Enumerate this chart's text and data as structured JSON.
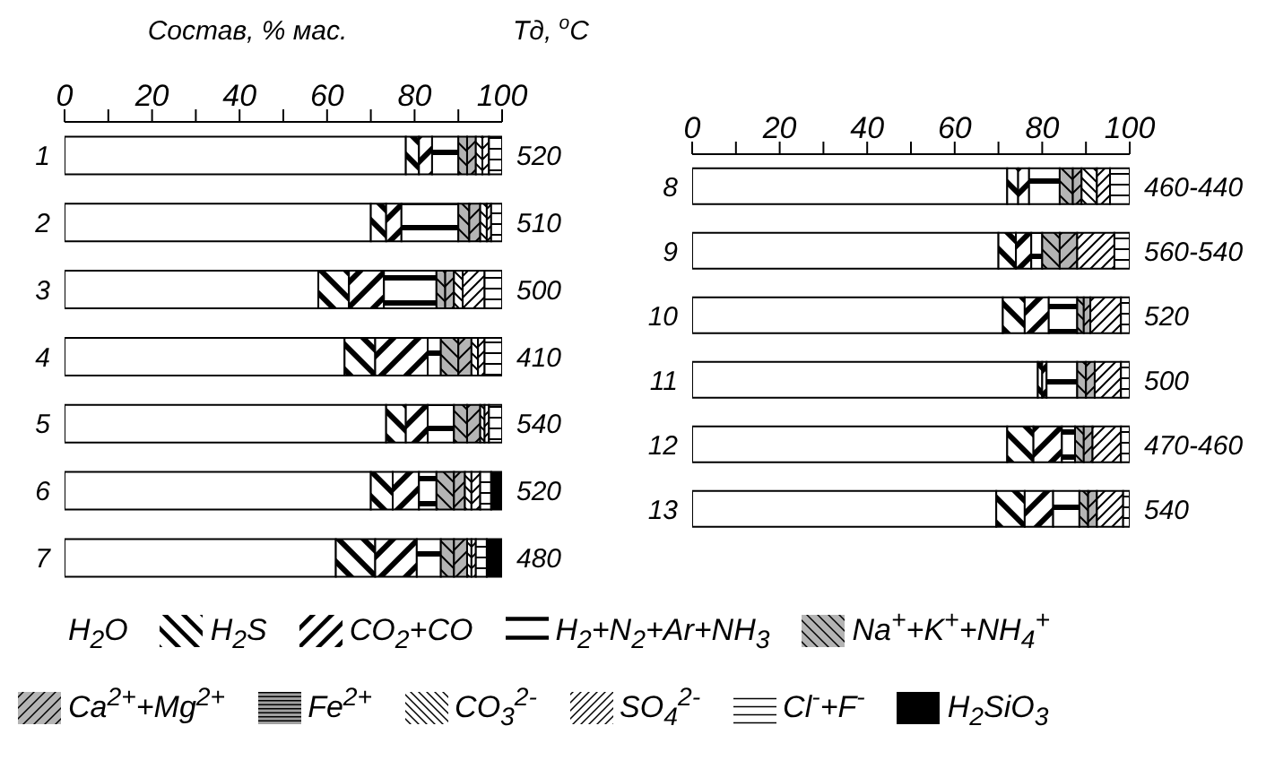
{
  "chart_data": [
    {
      "type": "bar",
      "orientation": "horizontal",
      "stacked": true,
      "xlabel": "Состав, % мас.",
      "y2label": "Тд, $^{o}$C",
      "legend": "bottom",
      "grid": false,
      "categories": [
        "1",
        "2",
        "3",
        "4",
        "5",
        "6",
        "7"
      ],
      "xlim": [
        0,
        100
      ],
      "xticks": [
        0,
        {
          "value": 10,
          "label": null
        },
        20,
        {
          "value": 30,
          "label": null
        },
        40,
        {
          "value": 50,
          "label": null
        },
        60,
        {
          "value": 70,
          "label": null
        },
        80,
        {
          "value": 90,
          "label": null
        },
        100
      ],
      "annotations": [
        "520",
        "510",
        "500",
        "410",
        "540",
        "520",
        "480"
      ],
      "series": [
        {
          "name": "H$_{2}$O",
          "color": "#ffffff",
          "values": [
            78,
            70,
            58,
            64,
            73.5,
            70,
            62
          ]
        },
        {
          "name": "H$_{2}$S",
          "color": "#000000",
          "values": [
            3,
            3.5,
            7,
            7,
            4.5,
            5,
            9
          ]
        },
        {
          "name": "CO$_{2}$+CO",
          "color": "#000000",
          "values": [
            3,
            3.5,
            8,
            12,
            5,
            6,
            9.5
          ]
        },
        {
          "name": "H$_{2}$+N$_{2}$+Ar+NH$_{3}$",
          "color": "#000000",
          "values": [
            6,
            13,
            12,
            3,
            6,
            4,
            5.5
          ]
        },
        {
          "name": "Na$^{+}$+K$^{+}$+NH$_{4}$$^{+}$",
          "color": "#000000",
          "values": [
            2,
            2.5,
            2,
            4,
            3,
            4,
            3
          ]
        },
        {
          "name": "Ca$^{2+}$+Mg$^{2+}$",
          "color": "#000000",
          "values": [
            2,
            2.5,
            2,
            3,
            3,
            2.5,
            3
          ]
        },
        {
          "name": "Fe$^{2+}$",
          "color": "#000000",
          "values": [
            0,
            0,
            0,
            0,
            0,
            0,
            0
          ]
        },
        {
          "name": "CO$_{3}$$^{2-}$",
          "color": "#000000",
          "values": [
            1.5,
            1.5,
            2,
            1.5,
            1,
            1.5,
            1
          ]
        },
        {
          "name": "SO$_{4}$$^{2-}$",
          "color": "#000000",
          "values": [
            1.5,
            1,
            5,
            1.5,
            1,
            2,
            1
          ]
        },
        {
          "name": "Cl$^{-}$+F$^{-}$",
          "color": "#000000",
          "values": [
            3,
            2.5,
            4,
            4,
            3,
            2.5,
            2.5
          ]
        },
        {
          "name": "H$_{2}$SiO$_{3}$",
          "color": "#000000",
          "values": [
            0,
            0,
            0,
            0,
            0,
            2.5,
            3.5
          ]
        }
      ]
    },
    {
      "type": "bar",
      "orientation": "horizontal",
      "stacked": true,
      "grid": false,
      "categories": [
        "8",
        "9",
        "10",
        "11",
        "12",
        "13"
      ],
      "xlim": [
        0,
        100
      ],
      "xticks": [
        0,
        {
          "value": 10,
          "label": null
        },
        20,
        {
          "value": 30,
          "label": null
        },
        40,
        {
          "value": 50,
          "label": null
        },
        60,
        {
          "value": 70,
          "label": null
        },
        80,
        {
          "value": 90,
          "label": null
        },
        100
      ],
      "annotations": [
        "460-440",
        "560-540",
        "520",
        "500",
        "470-460",
        "540"
      ],
      "series": [
        {
          "color": "#ffffff",
          "values": [
            72,
            70,
            71,
            79,
            72,
            69.5
          ]
        },
        {
          "color": "#000000",
          "values": [
            2.5,
            4,
            5,
            1,
            6,
            6.5
          ]
        },
        {
          "color": "#000000",
          "values": [
            2.5,
            3.5,
            5.5,
            1,
            6.5,
            6.5
          ]
        },
        {
          "color": "#000000",
          "values": [
            7,
            2.5,
            6.5,
            7,
            3,
            6
          ]
        },
        {
          "color": "#000000",
          "values": [
            3,
            4,
            1.5,
            2,
            2,
            2
          ]
        },
        {
          "color": "#000000",
          "values": [
            2,
            4,
            1.5,
            2,
            2,
            2
          ]
        },
        {
          "color": "#000000",
          "values": [
            0,
            0,
            0,
            0,
            0,
            0
          ]
        },
        {
          "color": "#000000",
          "values": [
            3.5,
            0,
            0,
            0,
            0,
            0
          ]
        },
        {
          "color": "#000000",
          "values": [
            3,
            8.5,
            7,
            6,
            6.5,
            6
          ]
        },
        {
          "color": "#000000",
          "values": [
            4.5,
            3.5,
            2,
            2,
            2,
            1.5
          ]
        },
        {
          "color": "#000000",
          "values": [
            0,
            0,
            0,
            0,
            0,
            0
          ]
        }
      ]
    }
  ]
}
